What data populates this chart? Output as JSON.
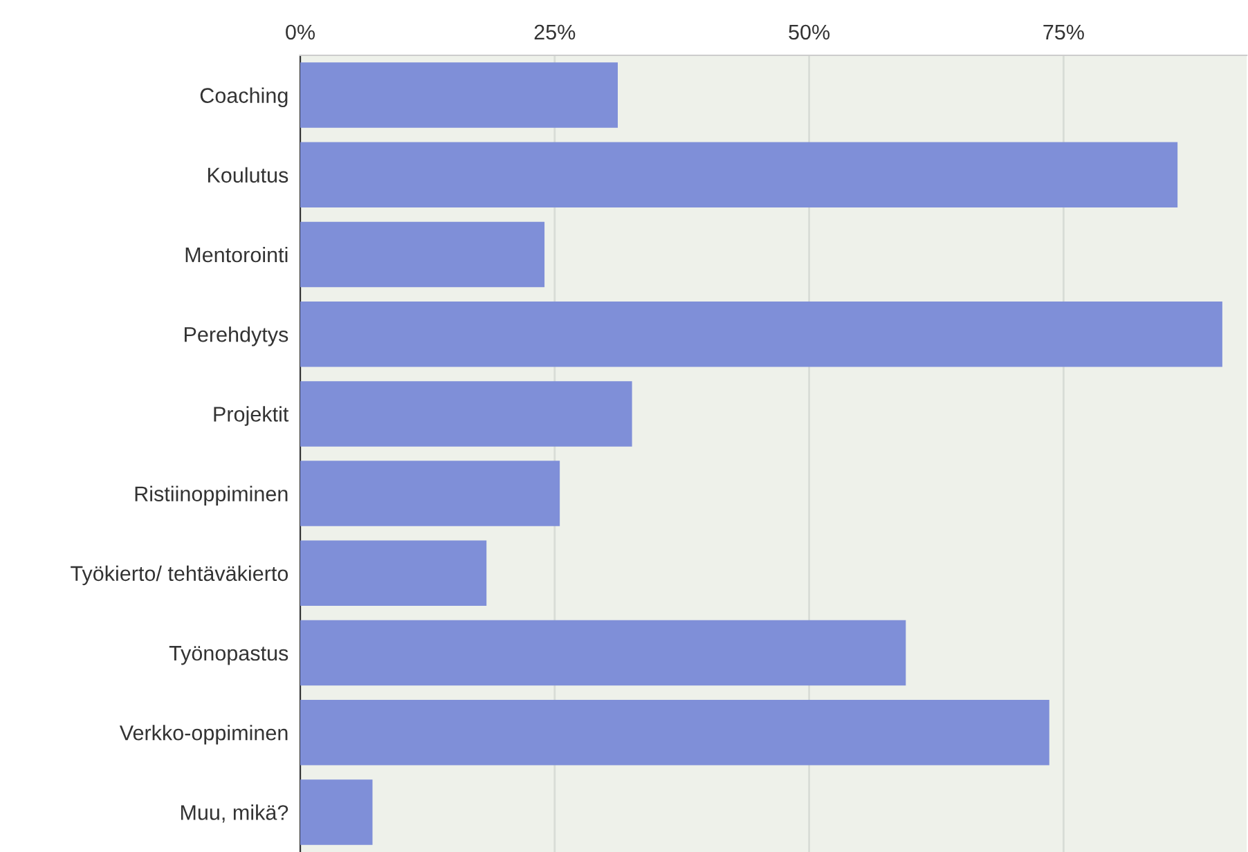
{
  "chart_data": {
    "type": "bar",
    "orientation": "horizontal",
    "categories": [
      "Coaching",
      "Koulutus",
      "Mentorointi",
      "Perehdytys",
      "Projektit",
      "Ristiinoppiminen",
      "Työkierto/ tehtäväkierto",
      "Työnopastus",
      "Verkko-oppiminen",
      "Muu, mikä?"
    ],
    "values": [
      31.2,
      86.2,
      24.0,
      90.6,
      32.6,
      25.5,
      18.3,
      59.5,
      73.6,
      7.1
    ],
    "color": "#7f8fd8",
    "xlim": [
      0,
      93
    ],
    "xticks": [
      {
        "value": 0,
        "label": "0%"
      },
      {
        "value": 25,
        "label": "25%"
      },
      {
        "value": 50,
        "label": "50%"
      },
      {
        "value": 75,
        "label": "75%"
      }
    ],
    "grid": "x"
  }
}
